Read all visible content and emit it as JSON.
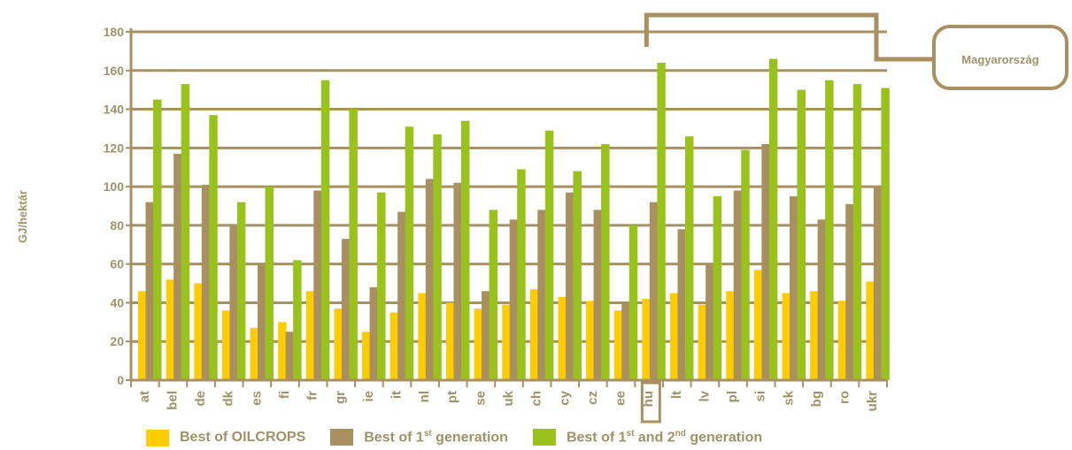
{
  "chart_data": {
    "type": "bar",
    "ylabel": "GJ/hektár",
    "ylim": [
      0,
      180
    ],
    "yticks": [
      0,
      20,
      40,
      60,
      80,
      100,
      120,
      140,
      160,
      180
    ],
    "grid": true,
    "categories": [
      "at",
      "bel",
      "de",
      "dk",
      "es",
      "fi",
      "fr",
      "gr",
      "ie",
      "it",
      "nl",
      "pt",
      "se",
      "uk",
      "ch",
      "cy",
      "cz",
      "ee",
      "hu",
      "lt",
      "lv",
      "pl",
      "si",
      "sk",
      "bg",
      "ro",
      "ukr"
    ],
    "series": [
      {
        "name": "Best of OILCROPS",
        "color": "#ffcc00",
        "values": [
          46,
          52,
          50,
          36,
          27,
          30,
          46,
          37,
          25,
          35,
          45,
          40,
          37,
          39,
          47,
          43,
          41,
          36,
          42,
          45,
          39,
          46,
          57,
          45,
          46,
          41,
          51
        ]
      },
      {
        "name": "Best of 1st generation",
        "color": "#a89060",
        "values": [
          92,
          117,
          101,
          80,
          60,
          25,
          98,
          73,
          48,
          87,
          104,
          102,
          46,
          83,
          88,
          97,
          88,
          40,
          92,
          78,
          60,
          98,
          122,
          95,
          83,
          91,
          100
        ]
      },
      {
        "name": "Best of 1st and 2nd generation",
        "color": "#99c21c",
        "values": [
          145,
          153,
          137,
          92,
          100,
          62,
          155,
          140,
          97,
          131,
          127,
          134,
          88,
          109,
          129,
          108,
          122,
          80,
          164,
          126,
          95,
          119,
          166,
          150,
          155,
          153,
          151
        ]
      }
    ],
    "highlight": {
      "category": "hu",
      "label": "Magyarország"
    }
  },
  "legend": {
    "oilcrops": {
      "text": "Best of OILCROPS",
      "color": "#ffcc00"
    },
    "first": {
      "pre": "Best of 1",
      "sup": "st",
      "post": " generation",
      "color": "#a89060"
    },
    "both": {
      "pre": "Best of 1",
      "sup1": "st",
      "mid": " and 2",
      "sup2": "nd",
      "post": " generation",
      "color": "#99c21c"
    }
  },
  "colors": {
    "axis": "#a89060",
    "text": "#a09268"
  }
}
